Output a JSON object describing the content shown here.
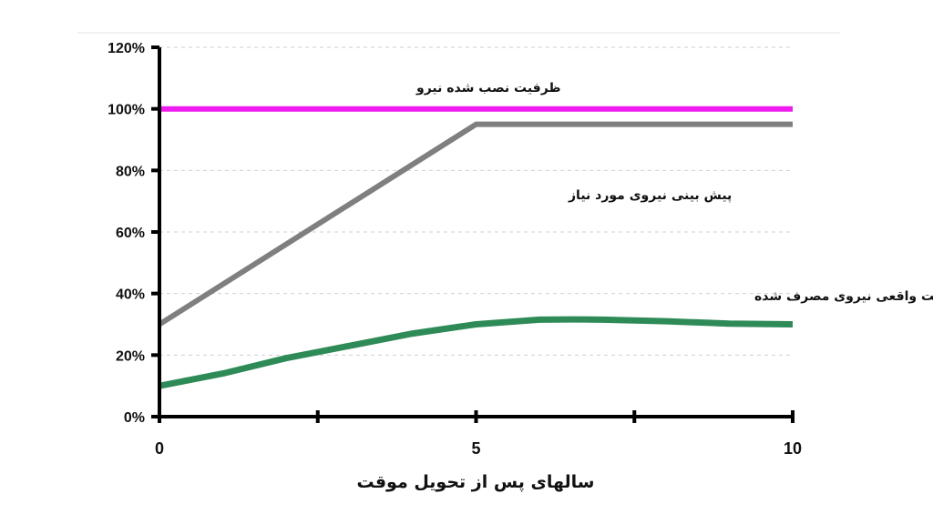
{
  "chart_data": {
    "type": "line",
    "xlabel": "سالهای پس از تحویل موقت",
    "ylabel": "",
    "xlim": [
      0,
      10
    ],
    "ylim": [
      0,
      120
    ],
    "x_ticks": [
      0,
      5,
      10
    ],
    "x_ticks_unlabeled": [
      2.5,
      7.5
    ],
    "y_ticks": [
      "0%",
      "20%",
      "40%",
      "60%",
      "80%",
      "100%",
      "120%"
    ],
    "y_tick_values": [
      0,
      20,
      40,
      60,
      80,
      100,
      120
    ],
    "grid": "dashed horizontal",
    "series": [
      {
        "name": "ظرفیت نصب شده نیرو",
        "color": "#ee1cee",
        "x": [
          0,
          10
        ],
        "y": [
          100,
          100
        ]
      },
      {
        "name": "پیش بینی نیروی مورد نیاز",
        "color": "#7f7f7f",
        "x": [
          0,
          5,
          10
        ],
        "y": [
          30,
          95,
          95
        ]
      },
      {
        "name": "ظرفیت واقعی نیروی مصرف شده",
        "color": "#2e8b57",
        "x": [
          0,
          1,
          2,
          2.5,
          3,
          4,
          5,
          6,
          6.5,
          7,
          8,
          9,
          10
        ],
        "y": [
          10,
          14,
          19,
          21,
          23,
          27,
          30,
          31.5,
          31.6,
          31.5,
          31,
          30.2,
          30
        ]
      }
    ]
  }
}
